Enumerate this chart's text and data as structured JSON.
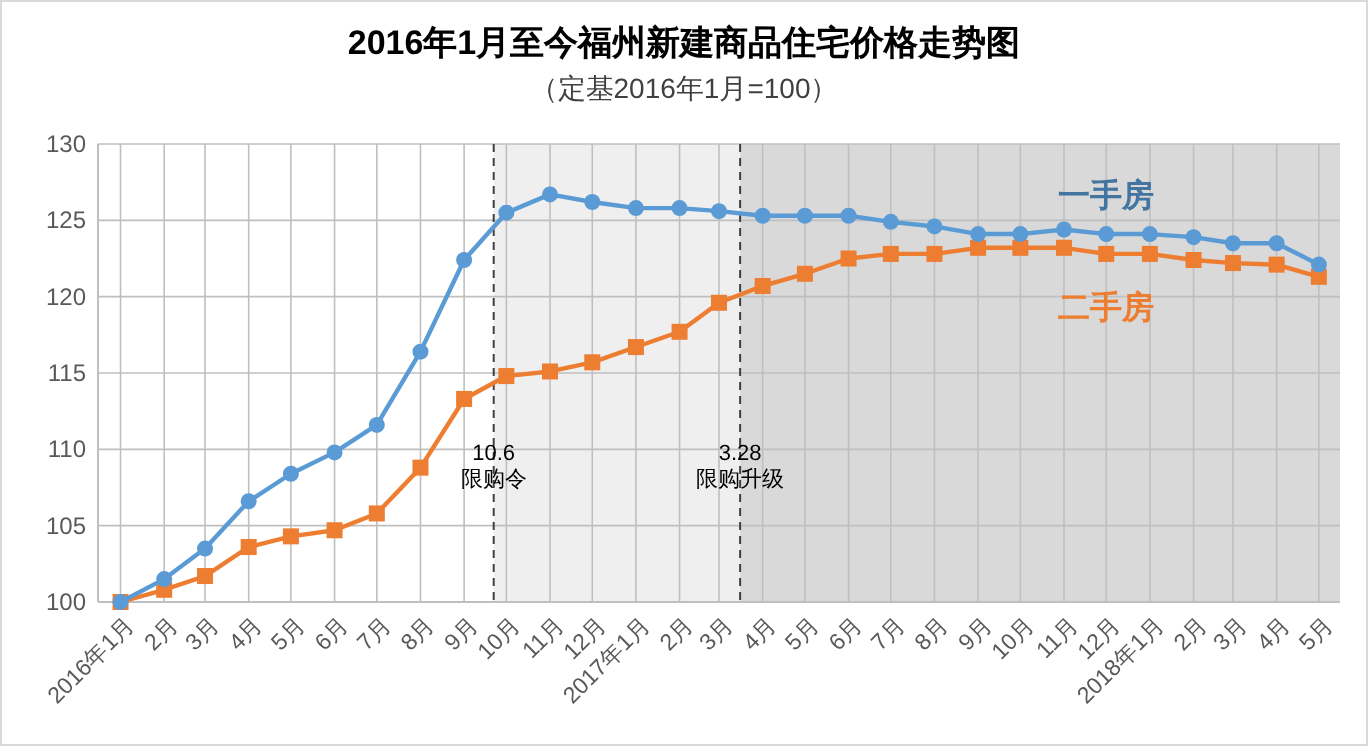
{
  "chart_data": {
    "type": "line",
    "title": "2016年1月至今福州新建商品住宅价格走势图",
    "subtitle": "（定基2016年1月=100）",
    "x": [
      "2016-01-01",
      "2016-02-01",
      "2016-03-01",
      "2016-04-01",
      "2016-05-01",
      "2016-06-01",
      "2016-07-01",
      "2016-08-01",
      "2016-09-01",
      "2016-10-01",
      "2016-11-01",
      "2016-12-01",
      "2017-01-01",
      "2017-02-01",
      "2017-03-01",
      "2017-04-01",
      "2017-05-01",
      "2017-06-01",
      "2017-07-01",
      "2017-08-01",
      "2017-09-01",
      "2017-10-01",
      "2017-11-01",
      "2017-12-01",
      "2018-01-01",
      "2018-02-01",
      "2018-03-01",
      "2018-04-01",
      "2018-05-01"
    ],
    "xlim": [
      "2015-12-16",
      "2018-05-16"
    ],
    "xticks": [
      {
        "value": "2016-01-01",
        "label": "2016年1月"
      },
      {
        "value": "2016-02-01",
        "label": "2月"
      },
      {
        "value": "2016-03-01",
        "label": "3月"
      },
      {
        "value": "2016-04-01",
        "label": "4月"
      },
      {
        "value": "2016-05-01",
        "label": "5月"
      },
      {
        "value": "2016-06-01",
        "label": "6月"
      },
      {
        "value": "2016-07-01",
        "label": "7月"
      },
      {
        "value": "2016-08-01",
        "label": "8月"
      },
      {
        "value": "2016-09-01",
        "label": "9月"
      },
      {
        "value": "2016-10-01",
        "label": "10月"
      },
      {
        "value": "2016-11-01",
        "label": "11月"
      },
      {
        "value": "2016-12-01",
        "label": "12月"
      },
      {
        "value": "2017-01-01",
        "label": "2017年1月"
      },
      {
        "value": "2017-02-01",
        "label": "2月"
      },
      {
        "value": "2017-03-01",
        "label": "3月"
      },
      {
        "value": "2017-04-01",
        "label": "4月"
      },
      {
        "value": "2017-05-01",
        "label": "5月"
      },
      {
        "value": "2017-06-01",
        "label": "6月"
      },
      {
        "value": "2017-07-01",
        "label": "7月"
      },
      {
        "value": "2017-08-01",
        "label": "8月"
      },
      {
        "value": "2017-09-01",
        "label": "9月"
      },
      {
        "value": "2017-10-01",
        "label": "10月"
      },
      {
        "value": "2017-11-01",
        "label": "11月"
      },
      {
        "value": "2017-12-01",
        "label": "12月"
      },
      {
        "value": "2018-01-01",
        "label": "2018年1月"
      },
      {
        "value": "2018-02-01",
        "label": "2月"
      },
      {
        "value": "2018-03-01",
        "label": "3月"
      },
      {
        "value": "2018-04-01",
        "label": "4月"
      },
      {
        "value": "2018-05-01",
        "label": "5月"
      }
    ],
    "ylim": [
      100,
      130
    ],
    "yticks": [
      100,
      105,
      110,
      115,
      120,
      125,
      130
    ],
    "grid": true,
    "legend": "right",
    "series": [
      {
        "name": "一手房",
        "color": "#5b9bd5",
        "marker": "circle",
        "values": [
          100,
          101.5,
          103.5,
          106.6,
          108.4,
          109.8,
          111.6,
          116.4,
          122.4,
          125.5,
          126.7,
          126.2,
          125.8,
          125.8,
          125.6,
          125.3,
          125.3,
          125.3,
          124.9,
          124.6,
          124.1,
          124.1,
          124.4,
          124.1,
          124.1,
          123.9,
          123.5,
          123.5,
          122.1
        ]
      },
      {
        "name": "二手房",
        "color": "#ed7d31",
        "marker": "square",
        "values": [
          100,
          100.8,
          101.7,
          103.6,
          104.3,
          104.7,
          105.8,
          108.8,
          113.3,
          114.8,
          115.1,
          115.7,
          116.7,
          117.7,
          119.6,
          120.7,
          121.5,
          122.5,
          122.8,
          122.8,
          123.2,
          123.2,
          123.2,
          122.8,
          122.8,
          122.4,
          122.2,
          122.1,
          121.3
        ]
      }
    ],
    "bands": [
      {
        "axis": "x",
        "from": "2016-09-22",
        "to": "2017-03-16",
        "color": "#efefef"
      },
      {
        "axis": "x",
        "from": "2017-03-16",
        "to": "2018-05-16",
        "color": "#d9d9d9"
      }
    ],
    "ref_lines": [
      {
        "axis": "x",
        "value": "2016-09-22",
        "label": "10.6\n限购令",
        "line_style": "dashed",
        "color": "#404040"
      },
      {
        "axis": "x",
        "value": "2017-03-16",
        "label": "3.28\n限购升级",
        "line_style": "dashed",
        "color": "#404040"
      }
    ]
  }
}
